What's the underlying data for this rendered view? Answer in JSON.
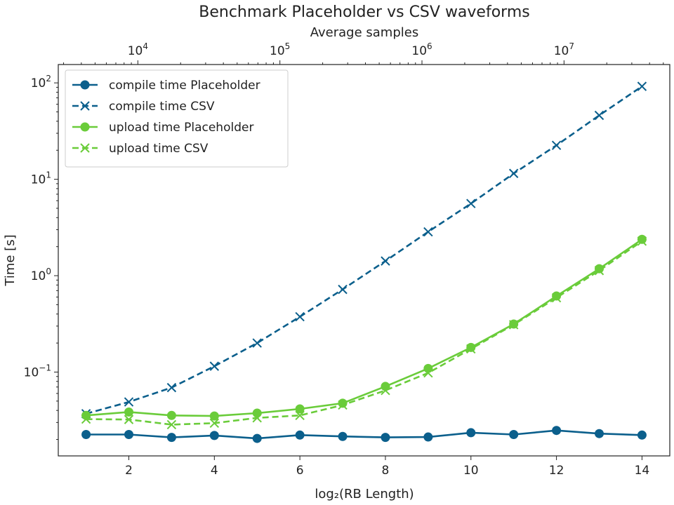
{
  "chart_data": {
    "type": "line",
    "title": "Benchmark Placeholder vs CSV waveforms",
    "xlabel": "log₂(RB Length)",
    "ylabel": "Time [s]",
    "top_xlabel": "Average samples",
    "x": [
      1,
      2,
      3,
      4,
      5,
      6,
      7,
      8,
      9,
      10,
      11,
      12,
      13,
      14
    ],
    "xlim": [
      0.35,
      14.65
    ],
    "ylim": [
      0.0135,
      155
    ],
    "yscale": "log",
    "x_ticks": [
      2,
      4,
      6,
      8,
      10,
      12,
      14
    ],
    "y_ticks": [
      {
        "value": 0.1,
        "base": "10",
        "exp": "−1"
      },
      {
        "value": 1,
        "base": "10",
        "exp": "0"
      },
      {
        "value": 10,
        "base": "10",
        "exp": "1"
      },
      {
        "value": 100,
        "base": "10",
        "exp": "2"
      }
    ],
    "top_axis": {
      "scale": "log",
      "major_ticks": [
        {
          "value": 10000,
          "base": "10",
          "exp": "4"
        },
        {
          "value": 100000,
          "base": "10",
          "exp": "5"
        },
        {
          "value": 1000000,
          "base": "10",
          "exp": "6"
        },
        {
          "value": 10000000,
          "base": "10",
          "exp": "7"
        }
      ],
      "samples_at_x1": 4320
    },
    "grid": false,
    "legend_position": "top-left",
    "series": [
      {
        "name": "compile time Placeholder",
        "color": "#0b5f8c",
        "dashed": false,
        "marker": "circle",
        "values": [
          0.0225,
          0.0225,
          0.021,
          0.022,
          0.0205,
          0.0222,
          0.0215,
          0.021,
          0.0212,
          0.0235,
          0.0225,
          0.0248,
          0.023,
          0.0222
        ]
      },
      {
        "name": "compile time CSV",
        "color": "#0b5f8c",
        "dashed": true,
        "marker": "x",
        "values": [
          0.037,
          0.049,
          0.069,
          0.115,
          0.2,
          0.375,
          0.72,
          1.42,
          2.85,
          5.6,
          11.5,
          22.5,
          46,
          92
        ]
      },
      {
        "name": "upload time Placeholder",
        "color": "#6acc3a",
        "dashed": false,
        "marker": "circle",
        "values": [
          0.0355,
          0.0385,
          0.0355,
          0.035,
          0.0375,
          0.0415,
          0.0475,
          0.071,
          0.109,
          0.18,
          0.315,
          0.615,
          1.18,
          2.38
        ]
      },
      {
        "name": "upload time CSV",
        "color": "#6acc3a",
        "dashed": true,
        "marker": "x",
        "values": [
          0.0325,
          0.0322,
          0.0285,
          0.0295,
          0.0335,
          0.0355,
          0.0455,
          0.0645,
          0.098,
          0.174,
          0.31,
          0.59,
          1.13,
          2.28
        ]
      }
    ]
  }
}
